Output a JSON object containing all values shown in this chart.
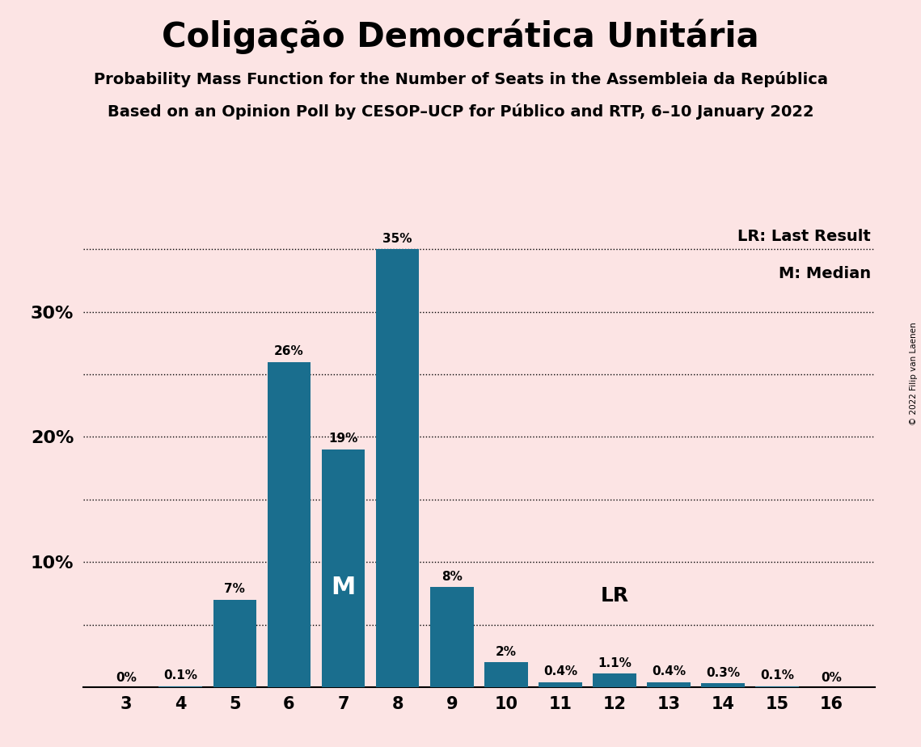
{
  "title": "Coligação Democrática Unitária",
  "subtitle1": "Probability Mass Function for the Number of Seats in the Assembleia da República",
  "subtitle2": "Based on an Opinion Poll by CESOP–UCP for Público and RTP, 6–10 January 2022",
  "copyright": "© 2022 Filip van Laenen",
  "seats": [
    3,
    4,
    5,
    6,
    7,
    8,
    9,
    10,
    11,
    12,
    13,
    14,
    15,
    16
  ],
  "probabilities": [
    0.0,
    0.1,
    7.0,
    26.0,
    19.0,
    35.0,
    8.0,
    2.0,
    0.4,
    1.1,
    0.4,
    0.3,
    0.1,
    0.0
  ],
  "labels": [
    "0%",
    "0.1%",
    "7%",
    "26%",
    "19%",
    "35%",
    "8%",
    "2%",
    "0.4%",
    "1.1%",
    "0.4%",
    "0.3%",
    "0.1%",
    "0%"
  ],
  "bar_color": "#1a6e8e",
  "background_color": "#fce4e4",
  "median_seat": 7,
  "last_result_seat": 12,
  "ylim": [
    0,
    37
  ],
  "yticks_labeled": [
    10,
    20,
    30
  ],
  "ytick_labels": [
    "10%",
    "20%",
    "30%"
  ],
  "dotted_lines": [
    5.0,
    10.0,
    15.0,
    20.0,
    25.0,
    30.0,
    35.0
  ],
  "legend_lr": "LR: Last Result",
  "legend_m": "M: Median",
  "median_label": "M",
  "lr_label": "LR"
}
